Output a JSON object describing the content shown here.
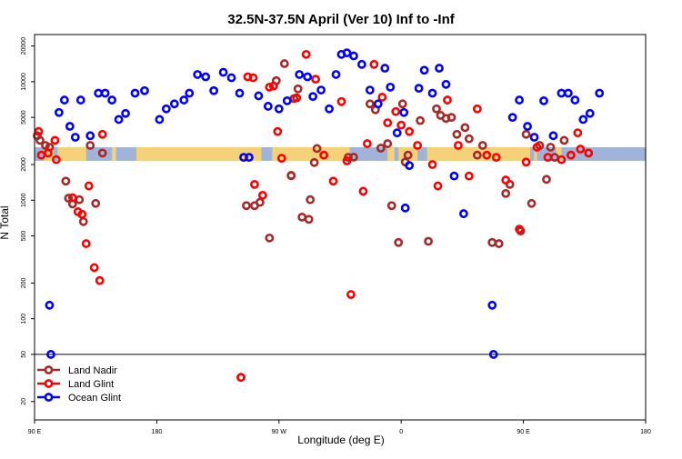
{
  "chart_data": {
    "type": "scatter",
    "title": "32.5N-37.5N April (Ver 10)   Inf to -Inf",
    "xlabel": "Longitude (deg E)",
    "ylabel": "N Total",
    "y_scale": "log",
    "xlim": [
      90,
      540
    ],
    "ylim": [
      14,
      25000
    ],
    "x_ticks": [
      {
        "value": 90,
        "label": "90 E"
      },
      {
        "value": 180,
        "label": "180"
      },
      {
        "value": 270,
        "label": "90 W"
      },
      {
        "value": 360,
        "label": "0"
      },
      {
        "value": 450,
        "label": "90 E"
      },
      {
        "value": 540,
        "label": "180"
      }
    ],
    "y_ticks": [
      {
        "value": 20,
        "label": "20"
      },
      {
        "value": 50,
        "label": "50"
      },
      {
        "value": 100,
        "label": "100"
      },
      {
        "value": 200,
        "label": "200"
      },
      {
        "value": 500,
        "label": "500"
      },
      {
        "value": 1000,
        "label": "1000"
      },
      {
        "value": 2000,
        "label": "2000"
      },
      {
        "value": 5000,
        "label": "5000"
      },
      {
        "value": 10000,
        "label": "10000"
      },
      {
        "value": 20000,
        "label": "20000"
      }
    ],
    "reference_line_y": 50,
    "map_band": {
      "y_low": 2150,
      "y_high": 2800,
      "ocean_color": "#9fb4d8",
      "land_color": "#f5d27a",
      "land_segments": [
        [
          97,
          104
        ],
        [
          107,
          128
        ],
        [
          147,
          150
        ],
        [
          165,
          257
        ],
        [
          265,
          322
        ],
        [
          350,
          355
        ],
        [
          358,
          372
        ],
        [
          379,
          455
        ],
        [
          458,
          460
        ],
        [
          474,
          478
        ]
      ]
    },
    "legend": {
      "position": "bottom-left",
      "entries": [
        "Land Nadir",
        "Land Glint",
        "Ocean Glint"
      ]
    },
    "series": [
      {
        "name": "Land Nadir",
        "color": "#a52a2a",
        "points": [
          [
            92,
            3500
          ],
          [
            94,
            3200
          ],
          [
            98,
            2900
          ],
          [
            101,
            2800
          ],
          [
            113,
            1450
          ],
          [
            115,
            1040
          ],
          [
            118,
            930
          ],
          [
            123,
            1010
          ],
          [
            126,
            660
          ],
          [
            131,
            2900
          ],
          [
            135,
            940
          ],
          [
            140,
            2500
          ],
          [
            242,
            32
          ],
          [
            246,
            900
          ],
          [
            252,
            900
          ],
          [
            256,
            960
          ],
          [
            263,
            480
          ],
          [
            268,
            10200
          ],
          [
            274,
            14200
          ],
          [
            279,
            1620
          ],
          [
            279,
            1610
          ],
          [
            281,
            7200
          ],
          [
            284,
            8700
          ],
          [
            287,
            720
          ],
          [
            292,
            690
          ],
          [
            293,
            1010
          ],
          [
            296,
            2080
          ],
          [
            298,
            2730
          ],
          [
            321,
            2300
          ],
          [
            325,
            2310
          ],
          [
            337,
            6500
          ],
          [
            341,
            5800
          ],
          [
            345,
            2750
          ],
          [
            350,
            3000
          ],
          [
            353,
            900
          ],
          [
            358,
            440
          ],
          [
            361,
            6500
          ],
          [
            363,
            2100
          ],
          [
            365,
            2400
          ],
          [
            374,
            4700
          ],
          [
            380,
            450
          ],
          [
            386,
            5900
          ],
          [
            389,
            5200
          ],
          [
            393,
            4900
          ],
          [
            397,
            5000
          ],
          [
            401,
            3600
          ],
          [
            407,
            4100
          ],
          [
            410,
            3300
          ],
          [
            416,
            2400
          ],
          [
            420,
            2900
          ],
          [
            427,
            440
          ],
          [
            432,
            430
          ],
          [
            437,
            1140
          ],
          [
            440,
            1360
          ],
          [
            448,
            550
          ],
          [
            452,
            3600
          ],
          [
            456,
            940
          ],
          [
            462,
            2900
          ],
          [
            467,
            1500
          ],
          [
            470,
            2800
          ],
          [
            473,
            2300
          ],
          [
            480,
            3200
          ]
        ]
      },
      {
        "name": "Land Glint",
        "color": "#ff0000",
        "points": [
          [
            93,
            3800
          ],
          [
            95,
            2400
          ],
          [
            100,
            2500
          ],
          [
            105,
            3200
          ],
          [
            106,
            2200
          ],
          [
            118,
            1050
          ],
          [
            122,
            800
          ],
          [
            125,
            760
          ],
          [
            128,
            430
          ],
          [
            130,
            1320
          ],
          [
            134,
            270
          ],
          [
            138,
            210
          ],
          [
            140,
            3600
          ],
          [
            242,
            32
          ],
          [
            247,
            11000
          ],
          [
            251,
            10800
          ],
          [
            252,
            1360
          ],
          [
            258,
            1100
          ],
          [
            263,
            9000
          ],
          [
            266,
            9200
          ],
          [
            269,
            3800
          ],
          [
            272,
            2260
          ],
          [
            283,
            7300
          ],
          [
            290,
            17000
          ],
          [
            297,
            10500
          ],
          [
            303,
            2400
          ],
          [
            310,
            1450
          ],
          [
            316,
            6800
          ],
          [
            320,
            2150
          ],
          [
            323,
            160
          ],
          [
            332,
            1190
          ],
          [
            335,
            3000
          ],
          [
            340,
            14000
          ],
          [
            346,
            7400
          ],
          [
            350,
            4500
          ],
          [
            356,
            5600
          ],
          [
            360,
            4300
          ],
          [
            366,
            3800
          ],
          [
            372,
            2900
          ],
          [
            383,
            2000
          ],
          [
            387,
            1320
          ],
          [
            394,
            7000
          ],
          [
            402,
            2900
          ],
          [
            410,
            1600
          ],
          [
            416,
            5900
          ],
          [
            423,
            2400
          ],
          [
            430,
            2300
          ],
          [
            437,
            1480
          ],
          [
            447,
            570
          ],
          [
            452,
            2100
          ],
          [
            460,
            2800
          ],
          [
            468,
            2300
          ],
          [
            478,
            2200
          ],
          [
            485,
            2400
          ],
          [
            490,
            3700
          ],
          [
            492,
            2700
          ],
          [
            498,
            2500
          ]
        ]
      },
      {
        "name": "Ocean Glint",
        "color": "#0000ff",
        "points": [
          [
            101,
            130
          ],
          [
            102,
            50
          ],
          [
            108,
            5500
          ],
          [
            112,
            7000
          ],
          [
            116,
            4200
          ],
          [
            120,
            3400
          ],
          [
            124,
            7000
          ],
          [
            131,
            3500
          ],
          [
            137,
            8000
          ],
          [
            142,
            8000
          ],
          [
            147,
            7000
          ],
          [
            152,
            4800
          ],
          [
            157,
            5400
          ],
          [
            164,
            8000
          ],
          [
            171,
            8400
          ],
          [
            182,
            4800
          ],
          [
            187,
            5900
          ],
          [
            193,
            6500
          ],
          [
            200,
            7000
          ],
          [
            204,
            8000
          ],
          [
            210,
            11500
          ],
          [
            216,
            11000
          ],
          [
            222,
            8400
          ],
          [
            229,
            12000
          ],
          [
            235,
            10800
          ],
          [
            241,
            8000
          ],
          [
            244,
            2300
          ],
          [
            248,
            2300
          ],
          [
            255,
            7600
          ],
          [
            262,
            6200
          ],
          [
            270,
            5900
          ],
          [
            276,
            6900
          ],
          [
            285,
            11500
          ],
          [
            291,
            11000
          ],
          [
            295,
            7500
          ],
          [
            301,
            8500
          ],
          [
            307,
            5900
          ],
          [
            312,
            11500
          ],
          [
            316,
            17000
          ],
          [
            320,
            17500
          ],
          [
            325,
            16500
          ],
          [
            331,
            14000
          ],
          [
            337,
            8500
          ],
          [
            343,
            6500
          ],
          [
            348,
            13000
          ],
          [
            352,
            9000
          ],
          [
            357,
            3700
          ],
          [
            362,
            5500
          ],
          [
            363,
            860
          ],
          [
            366,
            1960
          ],
          [
            373,
            8800
          ],
          [
            377,
            12500
          ],
          [
            383,
            8000
          ],
          [
            388,
            13000
          ],
          [
            393,
            9500
          ],
          [
            399,
            1600
          ],
          [
            406,
            770
          ],
          [
            427,
            130
          ],
          [
            428,
            50
          ],
          [
            442,
            5000
          ],
          [
            447,
            7000
          ],
          [
            453,
            4200
          ],
          [
            458,
            3400
          ],
          [
            465,
            6900
          ],
          [
            472,
            3500
          ],
          [
            478,
            8000
          ],
          [
            483,
            8000
          ],
          [
            488,
            7000
          ],
          [
            494,
            4800
          ],
          [
            499,
            5400
          ],
          [
            506,
            8000
          ]
        ]
      }
    ]
  }
}
